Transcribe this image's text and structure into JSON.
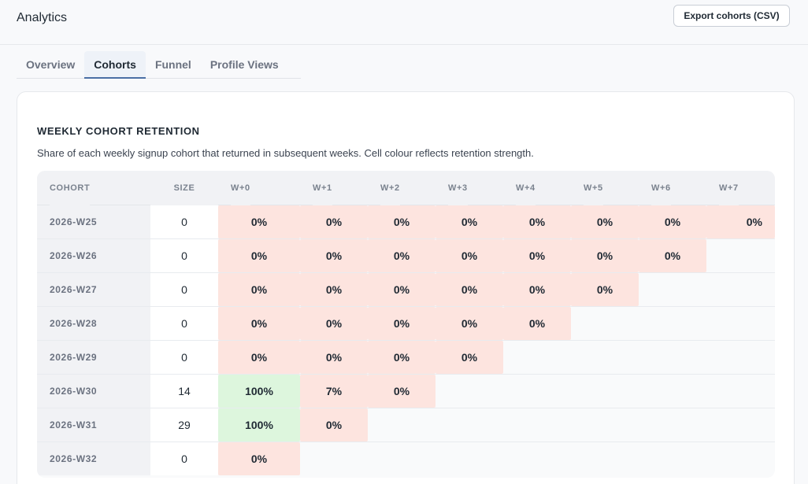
{
  "header": {
    "title": "Analytics",
    "export_label": "Export cohorts (CSV)"
  },
  "tabs": [
    {
      "label": "Overview",
      "active": false
    },
    {
      "label": "Cohorts",
      "active": true
    },
    {
      "label": "Funnel",
      "active": false
    },
    {
      "label": "Profile Views",
      "active": false
    }
  ],
  "card": {
    "title": "WEEKLY COHORT RETENTION",
    "subtitle": "Share of each weekly signup cohort that returned in subsequent weeks. Cell colour reflects retention strength."
  },
  "table": {
    "columns": [
      "COHORT",
      "SIZE",
      "W+0",
      "W+1",
      "W+2",
      "W+3",
      "W+4",
      "W+5",
      "W+6",
      "W+7"
    ],
    "rows": [
      {
        "cohort": "2026-W25",
        "size": "0",
        "retention": [
          "0%",
          "0%",
          "0%",
          "0%",
          "0%",
          "0%",
          "0%",
          "0%"
        ]
      },
      {
        "cohort": "2026-W26",
        "size": "0",
        "retention": [
          "0%",
          "0%",
          "0%",
          "0%",
          "0%",
          "0%",
          "0%"
        ]
      },
      {
        "cohort": "2026-W27",
        "size": "0",
        "retention": [
          "0%",
          "0%",
          "0%",
          "0%",
          "0%",
          "0%"
        ]
      },
      {
        "cohort": "2026-W28",
        "size": "0",
        "retention": [
          "0%",
          "0%",
          "0%",
          "0%",
          "0%"
        ]
      },
      {
        "cohort": "2026-W29",
        "size": "0",
        "retention": [
          "0%",
          "0%",
          "0%",
          "0%"
        ]
      },
      {
        "cohort": "2026-W30",
        "size": "14",
        "retention": [
          "100%",
          "7%",
          "0%"
        ]
      },
      {
        "cohort": "2026-W31",
        "size": "29",
        "retention": [
          "100%",
          "0%"
        ]
      },
      {
        "cohort": "2026-W32",
        "size": "0",
        "retention": [
          "0%"
        ]
      }
    ]
  },
  "colors": {
    "low_retention": "#fde4df",
    "high_retention": "#ddf6dd",
    "accent": "#4a6fa5"
  }
}
